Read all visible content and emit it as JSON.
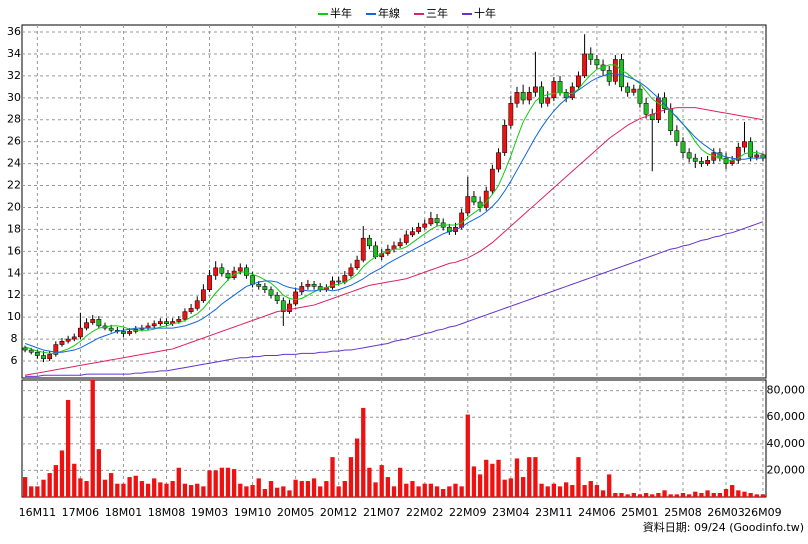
{
  "chart_data": {
    "type": "candlestick",
    "legend": "top",
    "grid": true,
    "up_color": "#ee1111",
    "down_color": "#22bb22",
    "ylim": [
      4.45,
      36.64
    ],
    "yticks": [
      6,
      8,
      10,
      12,
      14,
      16,
      18,
      20,
      22,
      24,
      26,
      28,
      30,
      32,
      34,
      36
    ],
    "categories": [
      null,
      null,
      "16M11",
      null,
      null,
      null,
      null,
      null,
      null,
      "17M06",
      null,
      null,
      null,
      null,
      null,
      null,
      "18M01",
      null,
      null,
      null,
      null,
      null,
      null,
      "18M08",
      null,
      null,
      null,
      null,
      null,
      null,
      "19M03",
      null,
      null,
      null,
      null,
      null,
      null,
      "19M10",
      null,
      null,
      null,
      null,
      null,
      null,
      "20M05",
      null,
      null,
      null,
      null,
      null,
      null,
      "20M12",
      null,
      null,
      null,
      null,
      null,
      null,
      "21M07",
      null,
      null,
      null,
      null,
      null,
      null,
      "22M02",
      null,
      null,
      null,
      null,
      null,
      null,
      "22M09",
      null,
      null,
      null,
      null,
      null,
      null,
      "23M04",
      null,
      null,
      null,
      null,
      null,
      null,
      "23M11",
      null,
      null,
      null,
      null,
      null,
      null,
      "24M06",
      null,
      null,
      null,
      null,
      null,
      null,
      "25M01",
      null,
      null,
      null,
      null,
      null,
      null,
      "25M08",
      null,
      null,
      null,
      null,
      null,
      null,
      "26M03",
      null,
      null,
      null,
      null,
      null,
      "26M09"
    ],
    "open": [
      7.2,
      7,
      6.8,
      6.5,
      6.2,
      6.6,
      7.5,
      7.8,
      8,
      8.2,
      9,
      9.5,
      9.8,
      9.2,
      9,
      8.8,
      8.7,
      8.5,
      8.7,
      8.9,
      9,
      9.2,
      9.4,
      9.6,
      9.4,
      9.6,
      9.8,
      10.5,
      10.8,
      11.5,
      12.5,
      13.8,
      14.5,
      14,
      13.6,
      14.2,
      14.5,
      13.8,
      13,
      12.8,
      12.5,
      12,
      11.5,
      10.5,
      11.2,
      12.3,
      12.8,
      13,
      12.8,
      12.5,
      12.7,
      13.3,
      13.2,
      13.8,
      14.5,
      15.2,
      17.2,
      16.5,
      15.5,
      15.8,
      16.2,
      16.5,
      16.8,
      17.5,
      17.8,
      18.2,
      18.5,
      19,
      18.6,
      18.2,
      17.8,
      18.2,
      19.5,
      21,
      20.5,
      20,
      21.5,
      23.5,
      25,
      27.5,
      29.5,
      30.5,
      29.8,
      30.5,
      31,
      29.5,
      30,
      31.5,
      30.5,
      30,
      31,
      32,
      34,
      33.5,
      33,
      32.5,
      31.5,
      33.5,
      31,
      30.5,
      30.8,
      29.5,
      28.5,
      28,
      30,
      29,
      27,
      26,
      25,
      24.5,
      24.2,
      24,
      24.3,
      25,
      24.5,
      24,
      24.3,
      25.5,
      26,
      24.6,
      24.8
    ],
    "high": [
      7.4,
      7.2,
      7,
      6.9,
      6.9,
      7.8,
      8.1,
      8.3,
      8.5,
      10.4,
      9.9,
      10.2,
      10.1,
      9.5,
      9.3,
      9.1,
      9,
      9,
      9.2,
      9.3,
      9.5,
      9.7,
      9.9,
      9.9,
      9.9,
      10.1,
      10.8,
      11.2,
      11.9,
      13,
      14.3,
      15.1,
      14.9,
      14.3,
      14.6,
      14.9,
      14.8,
      14.1,
      13.3,
      13.1,
      12.8,
      12.3,
      11.8,
      11.6,
      12.7,
      13.2,
      13.4,
      13.3,
      13.1,
      13,
      13.7,
      13.7,
      14.2,
      14.9,
      15.6,
      18.3,
      17.5,
      16.9,
      16.2,
      16.6,
      16.9,
      17.2,
      17.9,
      18.2,
      18.6,
      18.9,
      19.6,
      19.4,
      19,
      18.5,
      18.6,
      19.9,
      22.8,
      21.5,
      21,
      21.9,
      23.9,
      25.4,
      28,
      30.2,
      31,
      31.2,
      31,
      34.2,
      31.5,
      30.6,
      31.9,
      32,
      30.8,
      31.4,
      32.4,
      35.8,
      34.6,
      33.9,
      33.5,
      32.9,
      33.9,
      34,
      31.4,
      31.2,
      31.2,
      30,
      29,
      30.4,
      30.5,
      29.5,
      27.5,
      26.4,
      25.4,
      24.9,
      24.6,
      24.7,
      25.4,
      25.4,
      25,
      24.7,
      25.9,
      27.8,
      26.4,
      25.2,
      24.9
    ],
    "low": [
      6.8,
      6.6,
      6.2,
      5.9,
      6,
      6.4,
      7.3,
      7.6,
      7.8,
      8,
      8.8,
      9.3,
      9,
      8.8,
      8.6,
      8.5,
      8.2,
      8.3,
      8.5,
      8.7,
      8.8,
      9,
      9.2,
      9.2,
      9.2,
      9.4,
      9.6,
      10.3,
      10.6,
      11.3,
      12.3,
      13.4,
      13.7,
      13.3,
      13.4,
      13.9,
      13.5,
      12.7,
      12.5,
      12.2,
      11.7,
      11.2,
      9.2,
      10.3,
      11,
      12,
      12.5,
      12.5,
      12.3,
      12.3,
      12.5,
      12.9,
      13,
      13.6,
      14.3,
      15,
      16.2,
      15.3,
      15.2,
      15.6,
      15.9,
      16.3,
      16.6,
      17.3,
      17.6,
      18,
      18.3,
      18.3,
      17.9,
      17.5,
      17.5,
      18,
      19.2,
      20.2,
      19.6,
      19.7,
      21.2,
      23.2,
      24.7,
      27.2,
      29.1,
      29.4,
      29.4,
      30.1,
      29.1,
      29.2,
      29.7,
      30.2,
      29.6,
      29.8,
      30.7,
      31.8,
      33,
      32.6,
      32,
      31.1,
      31.2,
      30.6,
      30.1,
      30.2,
      29.1,
      28.1,
      23.3,
      27.7,
      28.6,
      26.6,
      25.6,
      24.5,
      24.1,
      23.6,
      23.7,
      23.8,
      24,
      24.2,
      23.5,
      23.8,
      24,
      25,
      24.2,
      24.3,
      24.2
    ],
    "close": [
      7,
      6.8,
      6.5,
      6.2,
      6.6,
      7.5,
      7.8,
      8,
      8.2,
      9,
      9.5,
      9.8,
      9.2,
      9,
      8.8,
      8.7,
      8.5,
      8.7,
      8.9,
      9,
      9.2,
      9.4,
      9.6,
      9.4,
      9.6,
      9.8,
      10.5,
      10.8,
      11.5,
      12.5,
      13.8,
      14.5,
      14,
      13.6,
      14.2,
      14.5,
      13.8,
      13,
      12.8,
      12.5,
      12,
      11.5,
      10.5,
      11.2,
      12.3,
      12.8,
      13,
      12.8,
      12.5,
      12.7,
      13.3,
      13.2,
      13.8,
      14.5,
      15.2,
      17.2,
      16.5,
      15.5,
      15.8,
      16.2,
      16.5,
      16.8,
      17.5,
      17.8,
      18.2,
      18.5,
      19,
      18.6,
      18.2,
      17.8,
      18.2,
      19.5,
      21,
      20.5,
      20,
      21.5,
      23.5,
      25,
      27.5,
      29.5,
      30.5,
      29.8,
      30.5,
      31,
      29.5,
      30,
      31.5,
      30.5,
      30,
      31,
      32,
      34,
      33.5,
      33,
      32.5,
      31.5,
      33.5,
      31,
      30.5,
      30.8,
      29.5,
      28.5,
      28,
      30,
      29,
      27,
      26,
      25,
      24.5,
      24.2,
      24,
      24.3,
      25,
      24.5,
      24,
      24.3,
      25.5,
      26,
      24.6,
      24.8,
      24.5
    ],
    "series": [
      {
        "name": "半年",
        "color": "#11cc11",
        "values": [
          7.3,
          7.1,
          6.9,
          6.8,
          6.7,
          6.7,
          6.9,
          7.1,
          7.4,
          7.8,
          8.3,
          8.7,
          9,
          9.1,
          9.2,
          9.2,
          9.1,
          8.9,
          8.8,
          8.8,
          8.8,
          8.9,
          9.1,
          9.2,
          9.4,
          9.5,
          9.7,
          10,
          10.3,
          10.8,
          11.5,
          12.2,
          12.8,
          13.4,
          13.9,
          14.1,
          14.1,
          13.9,
          13.7,
          13.4,
          13.1,
          12.6,
          12,
          11.7,
          11.6,
          11.7,
          12,
          12.3,
          12.6,
          12.7,
          12.9,
          13,
          13.2,
          13.5,
          13.9,
          14.6,
          15.1,
          15.5,
          15.8,
          16,
          16.2,
          16.2,
          16.4,
          16.8,
          17.2,
          17.6,
          18,
          18.3,
          18.4,
          18.4,
          18.4,
          18.6,
          19.1,
          19.5,
          19.9,
          20.5,
          21.2,
          22,
          23.3,
          24.7,
          26.3,
          27.8,
          28.8,
          29.7,
          30.1,
          30.3,
          30.4,
          30.5,
          30.4,
          30.4,
          30.8,
          31.5,
          32.1,
          32.6,
          32.8,
          33,
          33,
          32.5,
          32.2,
          31.7,
          31.3,
          30.6,
          29.9,
          29.5,
          29.2,
          28.7,
          28.3,
          27.6,
          26.9,
          26,
          25.3,
          24.9,
          24.7,
          24.5,
          24.3,
          24.3,
          24.5,
          24.9,
          25,
          25,
          24.9
        ]
      },
      {
        "name": "年線",
        "color": "#1166dd",
        "values": [
          7.6,
          7.4,
          7.2,
          7,
          6.9,
          6.8,
          6.8,
          6.9,
          7,
          7.2,
          7.5,
          7.8,
          8.1,
          8.3,
          8.5,
          8.7,
          8.8,
          8.9,
          9,
          9,
          9,
          9,
          9,
          9,
          9,
          9.1,
          9.2,
          9.4,
          9.6,
          9.9,
          10.3,
          10.7,
          11.2,
          11.6,
          12,
          12.4,
          12.8,
          13,
          13.2,
          13.3,
          13.3,
          13.2,
          12.9,
          12.7,
          12.6,
          12.5,
          12.4,
          12.4,
          12.5,
          12.5,
          12.4,
          12.5,
          12.7,
          12.9,
          13.2,
          13.5,
          13.9,
          14.2,
          14.5,
          14.9,
          15.2,
          15.5,
          15.8,
          16.1,
          16.4,
          16.7,
          17,
          17.3,
          17.6,
          17.8,
          18,
          18.2,
          18.6,
          18.9,
          19.2,
          19.6,
          20.1,
          20.7,
          21.5,
          22.4,
          23.4,
          24.4,
          25.4,
          26.4,
          27.3,
          28.1,
          28.8,
          29.4,
          29.9,
          30.3,
          30.7,
          31.1,
          31.5,
          31.8,
          32,
          32.2,
          32.2,
          32.1,
          31.9,
          31.7,
          31.4,
          31,
          30.5,
          30,
          29.4,
          28.8,
          28.2,
          27.6,
          27,
          26.4,
          25.9,
          25.5,
          25.1,
          24.8,
          24.6,
          24.5,
          24.4,
          24.4,
          24.5,
          24.5,
          24.5
        ]
      },
      {
        "name": "三年",
        "color": "#dd2266",
        "values": [
          4.7,
          4.8,
          4.9,
          5,
          5.1,
          5.2,
          5.3,
          5.4,
          5.5,
          5.6,
          5.7,
          5.8,
          5.9,
          6,
          6.1,
          6.2,
          6.3,
          6.4,
          6.5,
          6.6,
          6.7,
          6.8,
          6.9,
          7,
          7.1,
          7.3,
          7.5,
          7.7,
          7.9,
          8.1,
          8.3,
          8.5,
          8.7,
          8.9,
          9.1,
          9.3,
          9.5,
          9.7,
          9.9,
          10.1,
          10.3,
          10.5,
          10.6,
          10.7,
          10.8,
          10.9,
          11,
          11.1,
          11.3,
          11.5,
          11.7,
          11.9,
          12.1,
          12.3,
          12.5,
          12.7,
          12.9,
          13,
          13.1,
          13.2,
          13.3,
          13.4,
          13.5,
          13.7,
          13.9,
          14.1,
          14.3,
          14.5,
          14.7,
          14.9,
          15,
          15.2,
          15.4,
          15.7,
          16,
          16.4,
          16.8,
          17.3,
          17.8,
          18.3,
          18.8,
          19.3,
          19.8,
          20.3,
          20.8,
          21.3,
          21.8,
          22.3,
          22.8,
          23.3,
          23.8,
          24.3,
          24.8,
          25.3,
          25.8,
          26.3,
          26.7,
          27.1,
          27.5,
          27.8,
          28.1,
          28.3,
          28.5,
          28.7,
          28.9,
          29,
          29.1,
          29.1,
          29.1,
          29.1,
          29,
          28.9,
          28.8,
          28.7,
          28.6,
          28.5,
          28.4,
          28.3,
          28.2,
          28.1,
          28
        ]
      },
      {
        "name": "十年",
        "color": "#6633cc",
        "values": [
          4.6,
          4.6,
          4.6,
          4.7,
          4.7,
          4.7,
          4.7,
          4.7,
          4.7,
          4.7,
          4.8,
          4.8,
          4.8,
          4.8,
          4.8,
          4.8,
          4.8,
          4.8,
          4.9,
          4.9,
          5,
          5,
          5.1,
          5.1,
          5.2,
          5.3,
          5.4,
          5.5,
          5.6,
          5.7,
          5.8,
          5.9,
          6,
          6.1,
          6.2,
          6.3,
          6.3,
          6.4,
          6.4,
          6.5,
          6.5,
          6.5,
          6.6,
          6.6,
          6.6,
          6.7,
          6.7,
          6.7,
          6.8,
          6.8,
          6.9,
          6.9,
          7,
          7,
          7.1,
          7.2,
          7.3,
          7.4,
          7.5,
          7.6,
          7.8,
          7.9,
          8,
          8.2,
          8.3,
          8.5,
          8.6,
          8.8,
          8.9,
          9.1,
          9.2,
          9.4,
          9.6,
          9.8,
          10,
          10.2,
          10.4,
          10.6,
          10.8,
          11,
          11.2,
          11.4,
          11.6,
          11.8,
          12,
          12.2,
          12.4,
          12.6,
          12.8,
          13,
          13.2,
          13.4,
          13.6,
          13.8,
          14,
          14.2,
          14.4,
          14.6,
          14.8,
          15,
          15.2,
          15.4,
          15.6,
          15.8,
          16,
          16.2,
          16.3,
          16.5,
          16.6,
          16.8,
          17,
          17.1,
          17.3,
          17.4,
          17.6,
          17.7,
          17.9,
          18.1,
          18.3,
          18.5,
          18.7
        ]
      }
    ],
    "volume": {
      "color": "#ee1111",
      "ylim": [
        0,
        88000
      ],
      "yticks": [
        {
          "value": 20000,
          "label": "20,000"
        },
        {
          "value": 40000,
          "label": "40,000"
        },
        {
          "value": 60000,
          "label": "60,000"
        },
        {
          "value": 80000,
          "label": "80,000"
        }
      ],
      "values": [
        15000,
        8000,
        8000,
        13000,
        18000,
        24000,
        35000,
        73000,
        25000,
        14000,
        12000,
        88000,
        36000,
        13000,
        18000,
        10000,
        10000,
        15000,
        16000,
        12000,
        10000,
        14000,
        11000,
        10000,
        12000,
        22000,
        10000,
        9000,
        10000,
        8000,
        20000,
        20000,
        22000,
        22000,
        21000,
        10000,
        8000,
        9000,
        14000,
        6000,
        12000,
        7000,
        8000,
        5000,
        13000,
        12000,
        12000,
        14000,
        8000,
        12000,
        30000,
        8000,
        12000,
        30000,
        44000,
        67000,
        22000,
        11000,
        24000,
        15000,
        8000,
        22000,
        10000,
        12000,
        8000,
        10000,
        10000,
        8000,
        6000,
        8000,
        10000,
        8000,
        62000,
        23000,
        17000,
        28000,
        25000,
        28000,
        13000,
        14000,
        29000,
        15000,
        30000,
        30000,
        10000,
        8000,
        10000,
        8000,
        11000,
        9000,
        30000,
        9000,
        12000,
        9000,
        5000,
        17000,
        3000,
        3000,
        2000,
        3000,
        2000,
        3000,
        2000,
        3000,
        5000,
        2000,
        2000,
        3000,
        2000,
        4000,
        3000,
        5000,
        3000,
        3000,
        6000,
        9000,
        5000,
        4000,
        3000,
        2000,
        2000
      ]
    },
    "footer": "資料日期: 09/24 (Goodinfo.tw)"
  }
}
